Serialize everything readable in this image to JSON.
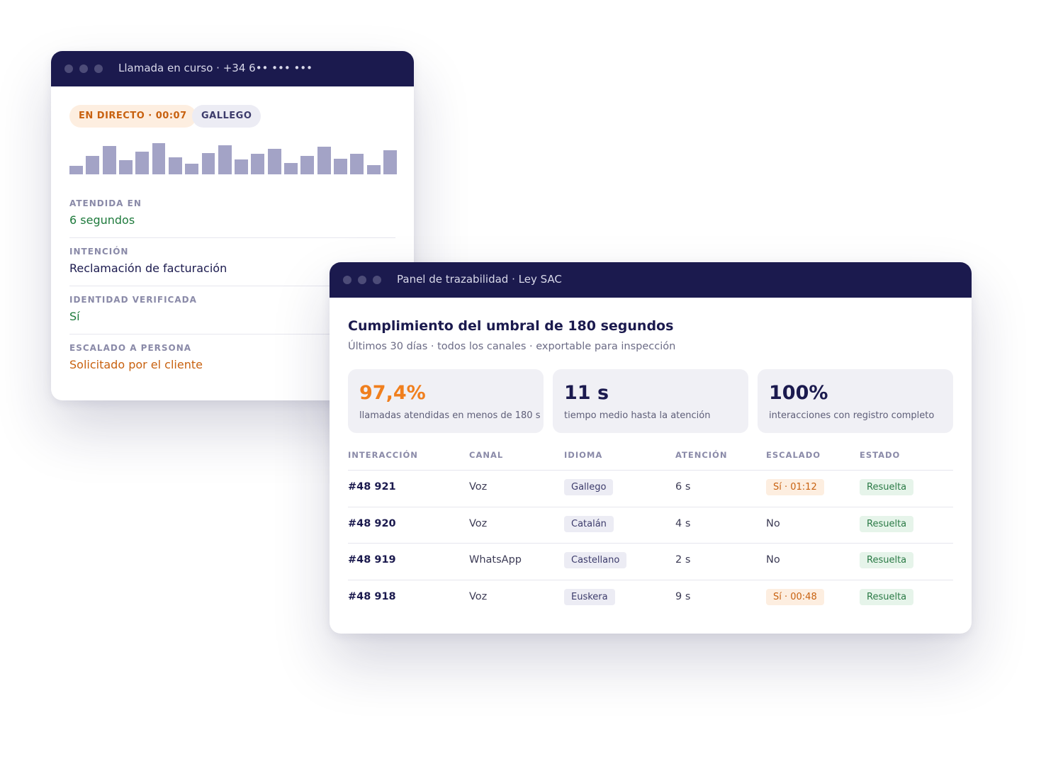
{
  "call_window": {
    "title": "Llamada en curso · +34 6•• ••• •••",
    "badges": [
      "EN DIRECTO · 00:07",
      "GALLEGO"
    ],
    "fields": [
      {
        "label": "ATENDIDA EN",
        "value": "6 segundos"
      },
      {
        "label": "INTENCIÓN",
        "value": "Reclamación de facturación"
      },
      {
        "label": "IDENTIDAD VERIFICADA",
        "value": "Sí"
      },
      {
        "label": "ESCALADO A PERSONA",
        "value": "Solicitado por el cliente"
      }
    ]
  },
  "panel_window": {
    "title": "Panel de trazabilidad · Ley SAC",
    "heading": "Cumplimiento del umbral de 180 segundos",
    "subheading": "Últimos 30 días · todos los canales · exportable para inspección",
    "stats": [
      {
        "value": "97,4%",
        "label": "llamadas atendidas en menos de 180 s"
      },
      {
        "value": "11 s",
        "label": "tiempo medio hasta la atención"
      },
      {
        "value": "100%",
        "label": "interacciones con registro completo"
      }
    ],
    "table": {
      "columns": [
        "INTERACCIÓN",
        "CANAL",
        "IDIOMA",
        "ATENCIÓN",
        "ESCALADO",
        "ESTADO"
      ],
      "rows": [
        [
          "#48 921",
          "Voz",
          "Gallego",
          "6 s",
          "Sí · 01:12",
          "Resuelta"
        ],
        [
          "#48 920",
          "Voz",
          "Catalán",
          "4 s",
          "No",
          "Resuelta"
        ],
        [
          "#48 919",
          "WhatsApp",
          "Castellano",
          "2 s",
          "No",
          "Resuelta"
        ],
        [
          "#48 918",
          "Voz",
          "Euskera",
          "9 s",
          "Sí · 00:48",
          "Resuelta"
        ]
      ]
    }
  }
}
